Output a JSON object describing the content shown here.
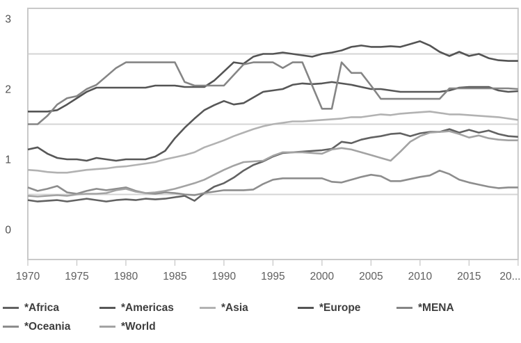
{
  "chart_data": {
    "type": "line",
    "title": "",
    "xlabel": "",
    "ylabel": "",
    "x_start": 1970,
    "x_end": 2020,
    "x_step": 1,
    "ylim": [
      0,
      3
    ],
    "y_ticks": [
      0,
      1,
      2,
      3
    ],
    "y_gridlines": [
      0.5,
      1.5,
      2.5
    ],
    "x_ticks": [
      1970,
      1975,
      1980,
      1985,
      1990,
      1995,
      2000,
      2005,
      2010,
      2015,
      2020
    ],
    "x_tick_labels": [
      "1970",
      "1975",
      "1980",
      "1985",
      "1990",
      "1995",
      "2000",
      "2005",
      "2010",
      "2015",
      "20..."
    ],
    "grid": true,
    "legend_position": "bottom",
    "axis_color": "#c9c9c9",
    "gridline_color": "#d4d4d4",
    "tick_label_color": "#5f5f5f",
    "series": [
      {
        "name": "*Africa",
        "color": "#626262",
        "values": [
          0.42,
          0.4,
          0.41,
          0.42,
          0.4,
          0.42,
          0.44,
          0.42,
          0.4,
          0.42,
          0.43,
          0.42,
          0.44,
          0.43,
          0.44,
          0.46,
          0.48,
          0.41,
          0.52,
          0.61,
          0.66,
          0.74,
          0.84,
          0.92,
          0.97,
          1.04,
          1.09,
          1.1,
          1.11,
          1.12,
          1.13,
          1.15,
          1.25,
          1.23,
          1.28,
          1.31,
          1.33,
          1.36,
          1.37,
          1.33,
          1.37,
          1.39,
          1.39,
          1.43,
          1.38,
          1.42,
          1.38,
          1.41,
          1.36,
          1.33,
          1.32
        ]
      },
      {
        "name": "*Americas",
        "color": "#575757",
        "values": [
          1.14,
          1.17,
          1.08,
          1.02,
          1.0,
          1.0,
          0.98,
          1.02,
          1.0,
          0.98,
          1.0,
          1.0,
          1.0,
          1.04,
          1.12,
          1.3,
          1.45,
          1.58,
          1.7,
          1.77,
          1.83,
          1.78,
          1.8,
          1.88,
          1.96,
          1.98,
          2.0,
          2.06,
          2.08,
          2.07,
          2.08,
          2.1,
          2.08,
          2.06,
          2.03,
          2.0,
          2.0,
          1.98,
          1.96,
          1.96,
          1.96,
          1.96,
          1.96,
          1.98,
          2.02,
          2.03,
          2.03,
          2.03,
          1.98,
          1.96,
          1.97
        ]
      },
      {
        "name": "*Asia",
        "color": "#b2b2b2",
        "values": [
          0.85,
          0.84,
          0.82,
          0.81,
          0.81,
          0.83,
          0.85,
          0.86,
          0.87,
          0.89,
          0.9,
          0.92,
          0.94,
          0.96,
          1.0,
          1.03,
          1.06,
          1.1,
          1.17,
          1.22,
          1.27,
          1.33,
          1.38,
          1.43,
          1.47,
          1.5,
          1.52,
          1.54,
          1.54,
          1.55,
          1.56,
          1.57,
          1.58,
          1.6,
          1.6,
          1.62,
          1.64,
          1.63,
          1.65,
          1.66,
          1.67,
          1.68,
          1.66,
          1.64,
          1.64,
          1.63,
          1.62,
          1.61,
          1.6,
          1.58,
          1.56
        ]
      },
      {
        "name": "*Europe",
        "color": "#545454",
        "values": [
          1.68,
          1.68,
          1.68,
          1.7,
          1.78,
          1.87,
          1.96,
          2.02,
          2.02,
          2.02,
          2.02,
          2.02,
          2.02,
          2.05,
          2.05,
          2.05,
          2.03,
          2.03,
          2.03,
          2.12,
          2.25,
          2.38,
          2.36,
          2.46,
          2.5,
          2.5,
          2.52,
          2.5,
          2.48,
          2.46,
          2.5,
          2.52,
          2.55,
          2.6,
          2.62,
          2.6,
          2.6,
          2.61,
          2.6,
          2.64,
          2.68,
          2.62,
          2.53,
          2.47,
          2.53,
          2.47,
          2.5,
          2.44,
          2.41,
          2.4,
          2.4
        ]
      },
      {
        "name": "*MENA",
        "color": "#858585",
        "values": [
          1.5,
          1.5,
          1.62,
          1.78,
          1.87,
          1.9,
          2.0,
          2.06,
          2.18,
          2.3,
          2.38,
          2.38,
          2.38,
          2.38,
          2.38,
          2.38,
          2.1,
          2.05,
          2.05,
          2.05,
          2.05,
          2.2,
          2.35,
          2.38,
          2.38,
          2.38,
          2.3,
          2.38,
          2.38,
          2.05,
          1.72,
          1.72,
          2.38,
          2.23,
          2.23,
          2.05,
          1.86,
          1.86,
          1.86,
          1.86,
          1.86,
          1.86,
          1.86,
          2.01,
          2.01,
          2.01,
          2.01,
          2.01,
          2.01,
          2.01,
          2.0
        ]
      },
      {
        "name": "*Oceania",
        "color": "#8d8d8d",
        "values": [
          0.6,
          0.55,
          0.58,
          0.62,
          0.53,
          0.51,
          0.55,
          0.58,
          0.56,
          0.58,
          0.6,
          0.55,
          0.52,
          0.51,
          0.53,
          0.52,
          0.5,
          0.49,
          0.52,
          0.54,
          0.56,
          0.56,
          0.56,
          0.57,
          0.65,
          0.71,
          0.73,
          0.73,
          0.73,
          0.73,
          0.73,
          0.68,
          0.67,
          0.71,
          0.75,
          0.78,
          0.76,
          0.69,
          0.69,
          0.72,
          0.75,
          0.77,
          0.84,
          0.79,
          0.71,
          0.67,
          0.64,
          0.61,
          0.59,
          0.6,
          0.6
        ]
      },
      {
        "name": "*World",
        "color": "#a3a3a3",
        "values": [
          0.48,
          0.47,
          0.48,
          0.49,
          0.48,
          0.5,
          0.51,
          0.51,
          0.52,
          0.56,
          0.58,
          0.54,
          0.52,
          0.53,
          0.55,
          0.58,
          0.62,
          0.66,
          0.71,
          0.78,
          0.85,
          0.91,
          0.96,
          0.97,
          0.98,
          1.05,
          1.1,
          1.1,
          1.1,
          1.09,
          1.08,
          1.14,
          1.16,
          1.14,
          1.1,
          1.06,
          1.02,
          0.98,
          1.11,
          1.25,
          1.33,
          1.38,
          1.39,
          1.4,
          1.36,
          1.31,
          1.34,
          1.3,
          1.28,
          1.27,
          1.27
        ]
      }
    ]
  }
}
